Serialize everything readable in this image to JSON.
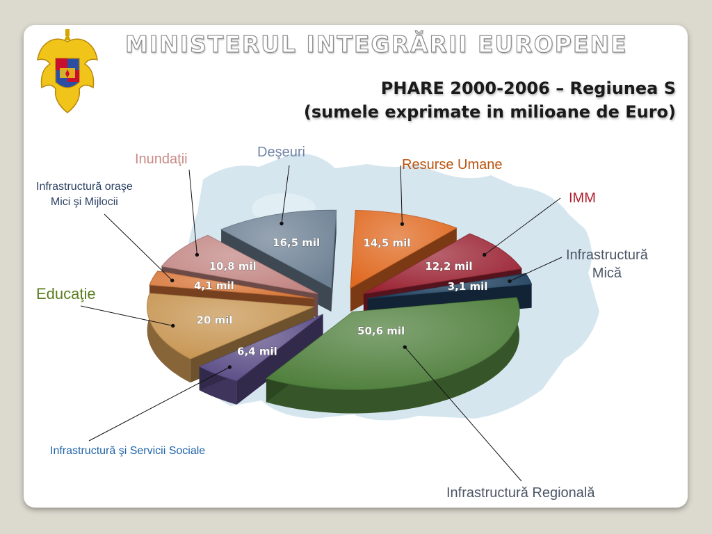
{
  "header": {
    "organization": "MINISTERUL INTEGRĂRII EUROPENE",
    "title_line1": "PHARE 2000-2006 – Regiunea S",
    "title_line2": "(sumele exprimate in milioane de Euro)"
  },
  "chart_data": {
    "type": "pie",
    "unit": "mil",
    "legend": "none",
    "slices": [
      {
        "category": "Resurse Umane",
        "value": 14.5,
        "data_label": "14,5 mil",
        "color": "#e06a22"
      },
      {
        "category": "IMM",
        "value": 12.2,
        "data_label": "12,2 mil",
        "color": "#9b2434"
      },
      {
        "category": "Infrastructură Mică",
        "value": 3.1,
        "data_label": "3,1 mil",
        "color": "#1f3f5e"
      },
      {
        "category": "Infrastructură Regională",
        "value": 50.6,
        "data_label": "50,6 mil",
        "color": "#4f7f3c"
      },
      {
        "category": "Infrastructură şi Servicii Sociale",
        "value": 6.4,
        "data_label": "6,4 mil",
        "color": "#5b4d87"
      },
      {
        "category": "Educaţie",
        "value": 20,
        "data_label": "20 mil",
        "color": "#c79552"
      },
      {
        "category": "Infrastructură oraşe Mici şi Mijlocii",
        "value": 4.1,
        "data_label": "4,1 mil",
        "color": "#d8773a"
      },
      {
        "category": "Inundaţii",
        "value": 10.8,
        "data_label": "10,8 mil",
        "color": "#c28683"
      },
      {
        "category": "Deşeuri",
        "value": 16.5,
        "data_label": "16,5 mil",
        "color": "#6f8295"
      }
    ],
    "category_labels": {
      "resurse": "Resurse Umane",
      "imm": "IMM",
      "mica_1": "Infrastructură",
      "mica_2": "Mică",
      "regionala": "Infrastructură Regională",
      "sociale": "Infrastructură şi Servicii Sociale",
      "educatie": "Educaţie",
      "orase_1": "Infrastructură oraşe",
      "orase_2": "Mici şi Mijlocii",
      "inundatii": "Inundaţii",
      "deseuri": "Deşeuri"
    },
    "label_colors": {
      "resurse": "#b9530f",
      "imm": "#b01f2e",
      "mica": "#4b5566",
      "regionala": "#4b5566",
      "sociale": "#1f64a8",
      "educatie": "#5a7d1e",
      "orase": "#2a3f63",
      "inundatii": "#c98a86",
      "deseuri": "#7384a8"
    }
  }
}
